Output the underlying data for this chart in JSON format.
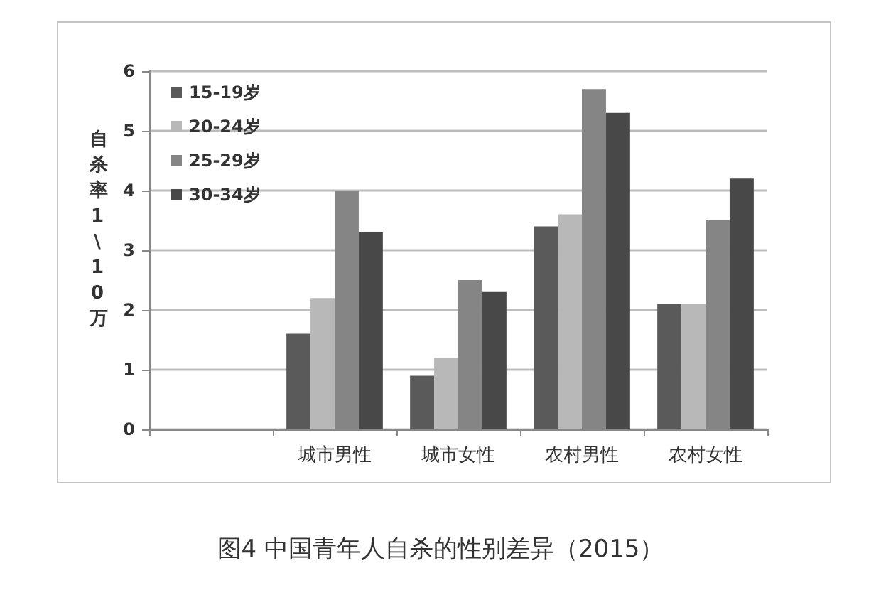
{
  "chart_data": {
    "type": "bar",
    "title": "图4 中国青年人自杀的性别差异（2015）",
    "ylabel": "自杀率 1\\10万",
    "categories": [
      null,
      "城市男性",
      "城市女性",
      "农村男性",
      "农村女性"
    ],
    "series": [
      {
        "name": "15-19岁",
        "color": "#5a5a5a",
        "values": [
          null,
          1.6,
          0.9,
          3.4,
          2.1
        ]
      },
      {
        "name": "20-24岁",
        "color": "#b8b8b8",
        "values": [
          null,
          2.2,
          1.2,
          3.6,
          2.1
        ]
      },
      {
        "name": "25-29岁",
        "color": "#858585",
        "values": [
          null,
          4.0,
          2.5,
          5.7,
          3.5
        ]
      },
      {
        "name": "30-34岁",
        "color": "#484848",
        "values": [
          null,
          3.3,
          2.3,
          5.3,
          4.2
        ]
      }
    ],
    "ylim": [
      0,
      6
    ],
    "yticks": [
      0,
      1,
      2,
      3,
      4,
      5,
      6
    ],
    "grid": "y",
    "legend": "top left"
  }
}
